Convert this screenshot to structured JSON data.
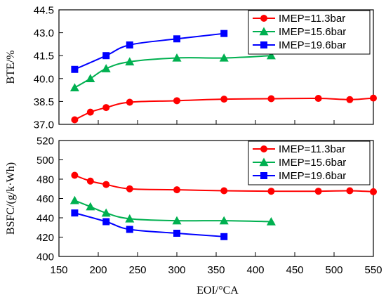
{
  "chart_data": [
    {
      "type": "line",
      "ylabel": "BTE/%",
      "ylim": [
        37.0,
        44.5
      ],
      "yticks": [
        37.0,
        38.5,
        40.0,
        41.5,
        43.0,
        44.5
      ],
      "ytick_labels": [
        "37.0",
        "38.5",
        "40.0",
        "41.5",
        "43.0",
        "44.5"
      ],
      "xlim": [
        150,
        550
      ],
      "grid": false,
      "legend": "top-right",
      "series": [
        {
          "name": "IMEP=11.3bar",
          "color": "#ff0000",
          "marker": "circle",
          "x": [
            170,
            190,
            210,
            240,
            300,
            360,
            420,
            480,
            520,
            550
          ],
          "y": [
            37.3,
            37.8,
            38.1,
            38.45,
            38.55,
            38.65,
            38.68,
            38.7,
            38.62,
            38.72
          ]
        },
        {
          "name": "IMEP=15.6bar",
          "color": "#00b050",
          "marker": "triangle",
          "x": [
            170,
            190,
            210,
            240,
            300,
            360,
            420
          ],
          "y": [
            39.4,
            40.0,
            40.65,
            41.1,
            41.35,
            41.35,
            41.5
          ]
        },
        {
          "name": "IMEP=19.6bar",
          "color": "#0000ff",
          "marker": "square",
          "x": [
            170,
            210,
            240,
            300,
            360
          ],
          "y": [
            40.6,
            41.5,
            42.2,
            42.6,
            42.95
          ]
        }
      ]
    },
    {
      "type": "line",
      "ylabel": "BSFC/(g/k·Wh)",
      "xlabel": "EOI/°CA",
      "ylim": [
        400,
        520
      ],
      "yticks": [
        400,
        420,
        440,
        460,
        480,
        500,
        520
      ],
      "ytick_labels": [
        "400",
        "420",
        "440",
        "460",
        "480",
        "500",
        "520"
      ],
      "xlim": [
        150,
        550
      ],
      "xticks": [
        150,
        200,
        250,
        300,
        350,
        400,
        450,
        500,
        550
      ],
      "xtick_labels": [
        "150",
        "200",
        "250",
        "300",
        "350",
        "400",
        "450",
        "500",
        "550"
      ],
      "grid": false,
      "legend": "top-right",
      "series": [
        {
          "name": "IMEP=11.3bar",
          "color": "#ff0000",
          "marker": "circle",
          "x": [
            170,
            190,
            210,
            240,
            300,
            360,
            420,
            480,
            520,
            550
          ],
          "y": [
            484,
            478,
            474.5,
            470,
            469,
            468,
            467.5,
            467.5,
            468,
            467
          ]
        },
        {
          "name": "IMEP=15.6bar",
          "color": "#00b050",
          "marker": "triangle",
          "x": [
            170,
            190,
            210,
            240,
            300,
            360,
            420
          ],
          "y": [
            458,
            451.5,
            445,
            439,
            437,
            437,
            436
          ]
        },
        {
          "name": "IMEP=19.6bar",
          "color": "#0000ff",
          "marker": "square",
          "x": [
            170,
            210,
            240,
            300,
            360
          ],
          "y": [
            445,
            436,
            428,
            424,
            420.5
          ]
        }
      ]
    }
  ]
}
